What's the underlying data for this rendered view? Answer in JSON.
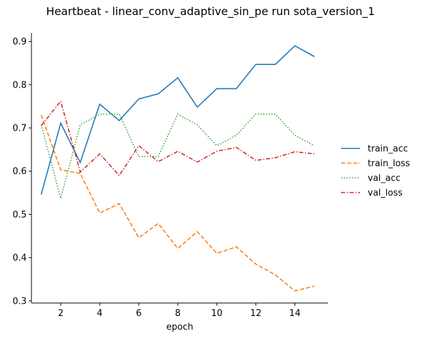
{
  "chart_data": {
    "type": "line",
    "title": "Heartbeat - linear_conv_adaptive_sin_pe run sota_version_1",
    "xlabel": "epoch",
    "ylabel": "",
    "x": [
      1,
      2,
      3,
      4,
      5,
      6,
      7,
      8,
      9,
      10,
      11,
      12,
      13,
      14,
      15
    ],
    "xlim": [
      0.5,
      15.7
    ],
    "ylim": [
      0.295,
      0.92
    ],
    "xticks": [
      2,
      4,
      6,
      8,
      10,
      12,
      14
    ],
    "yticks": [
      0.3,
      0.4,
      0.5,
      0.6,
      0.7,
      0.8,
      0.9
    ],
    "xtick_labels": [
      "2",
      "4",
      "6",
      "8",
      "10",
      "12",
      "14"
    ],
    "ytick_labels": [
      "0.3",
      "0.4",
      "0.5",
      "0.6",
      "0.7",
      "0.8",
      "0.9"
    ],
    "grid": false,
    "legend_position": "right",
    "series": [
      {
        "name": "train_acc",
        "color": "#1f77b4",
        "style": "solid",
        "values": [
          0.546,
          0.711,
          0.62,
          0.755,
          0.717,
          0.767,
          0.779,
          0.816,
          0.748,
          0.791,
          0.791,
          0.847,
          0.847,
          0.89,
          0.865
        ]
      },
      {
        "name": "train_loss",
        "color": "#ff7f0e",
        "style": "dashed",
        "values": [
          0.73,
          0.603,
          0.595,
          0.503,
          0.525,
          0.446,
          0.479,
          0.421,
          0.46,
          0.41,
          0.425,
          0.385,
          0.36,
          0.323,
          0.334
        ]
      },
      {
        "name": "val_acc",
        "color": "#2ca02c",
        "style": "dotted",
        "values": [
          0.707,
          0.537,
          0.707,
          0.732,
          0.732,
          0.634,
          0.634,
          0.732,
          0.707,
          0.659,
          0.683,
          0.732,
          0.732,
          0.683,
          0.659
        ]
      },
      {
        "name": "val_loss",
        "color": "#d62728",
        "style": "dashdot",
        "values": [
          0.705,
          0.762,
          0.598,
          0.64,
          0.59,
          0.659,
          0.622,
          0.646,
          0.621,
          0.646,
          0.655,
          0.625,
          0.631,
          0.645,
          0.64
        ]
      }
    ]
  }
}
